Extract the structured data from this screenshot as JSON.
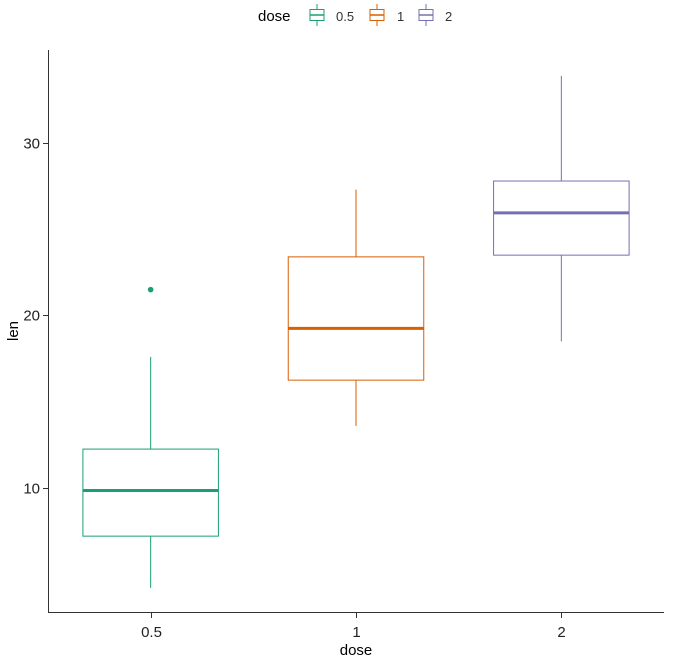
{
  "chart_data": {
    "type": "boxplot",
    "xlabel": "dose",
    "ylabel": "len",
    "categories": [
      "0.5",
      "1",
      "2"
    ],
    "ylim": [
      2.8,
      35.4
    ],
    "yticks": [
      10,
      20,
      30
    ],
    "grid": false,
    "legend": {
      "title": "dose",
      "position": "top",
      "entries": [
        "0.5",
        "1",
        "2"
      ]
    },
    "colors": [
      "#1b9e77",
      "#d95f02",
      "#7570b3"
    ],
    "boxes": [
      {
        "category": "0.5",
        "whisker_low": 4.2,
        "q1": 7.2,
        "median": 9.85,
        "q3": 12.25,
        "whisker_high": 17.6,
        "outliers": [
          21.5
        ]
      },
      {
        "category": "1",
        "whisker_low": 13.6,
        "q1": 16.25,
        "median": 19.25,
        "q3": 23.4,
        "whisker_high": 27.3,
        "outliers": []
      },
      {
        "category": "2",
        "whisker_low": 18.5,
        "q1": 23.5,
        "median": 25.95,
        "q3": 27.8,
        "whisker_high": 33.9,
        "outliers": []
      }
    ]
  }
}
